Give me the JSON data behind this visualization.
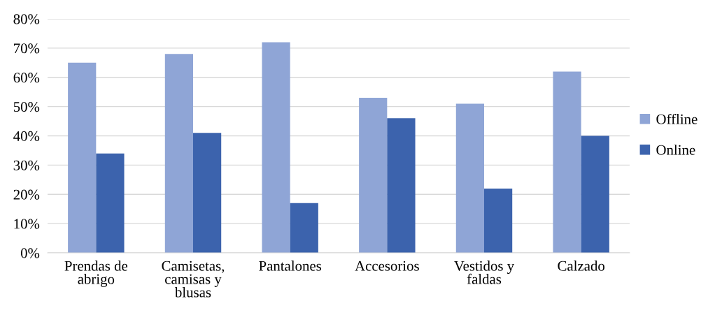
{
  "chart_data": {
    "type": "bar",
    "categories": [
      "Prendas de abrigo",
      "Camisetas, camisas y blusas",
      "Pantalones",
      "Accesorios",
      "Vestidos y faldas",
      "Calzado"
    ],
    "series": [
      {
        "name": "Offline",
        "color": "#8fa5d6",
        "values": [
          65,
          68,
          72,
          53,
          51,
          62
        ]
      },
      {
        "name": "Online",
        "color": "#3c63ad",
        "values": [
          34,
          41,
          17,
          46,
          22,
          40
        ]
      }
    ],
    "ylim": [
      0,
      80
    ],
    "yticks": [
      {
        "value": 0,
        "label": "0%"
      },
      {
        "value": 10,
        "label": "10%"
      },
      {
        "value": 20,
        "label": "20%"
      },
      {
        "value": 30,
        "label": "30%"
      },
      {
        "value": 40,
        "label": "40%"
      },
      {
        "value": 50,
        "label": "50%"
      },
      {
        "value": 60,
        "label": "60%"
      },
      {
        "value": 70,
        "label": "70%"
      },
      {
        "value": 80,
        "label": "80%"
      }
    ],
    "grid": "y",
    "legend": "right"
  }
}
